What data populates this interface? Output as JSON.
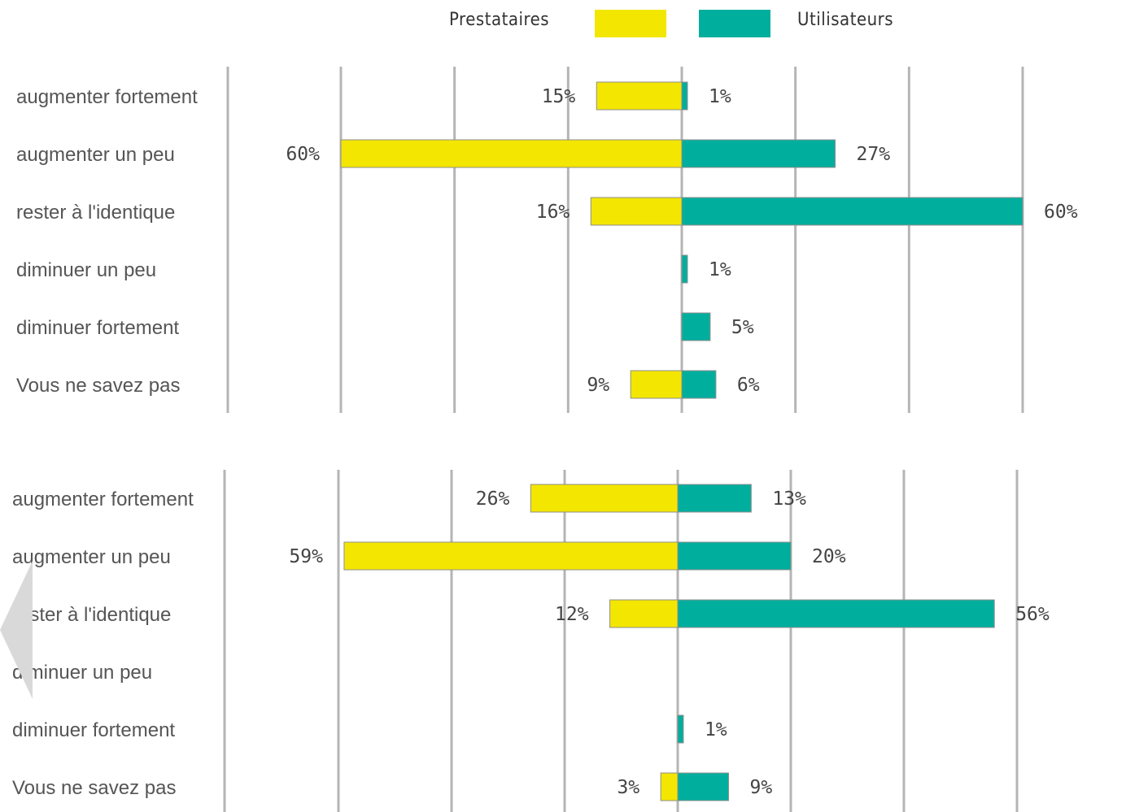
{
  "legend": {
    "providers_label": "Prestataires",
    "users_label": "Utilisateurs"
  },
  "colors": {
    "providers": "#f3e600",
    "users": "#00ae9e",
    "grid": "#b5b5b5",
    "bar_stroke": "#8f8f8f"
  },
  "chart_data": [
    {
      "type": "bar",
      "orientation": "horizontal-diverging",
      "categories": [
        "augmenter fortement",
        "augmenter un peu",
        "rester à l'identique",
        "diminuer un peu",
        "diminuer fortement",
        "Vous ne savez pas"
      ],
      "series": [
        {
          "name": "Prestataires",
          "values": [
            15,
            60,
            16,
            0,
            0,
            9
          ],
          "labels": [
            "15%",
            "60%",
            "16%",
            "",
            "",
            "9%"
          ]
        },
        {
          "name": "Utilisateurs",
          "values": [
            1,
            27,
            60,
            1,
            5,
            6
          ],
          "labels": [
            "1%",
            "27%",
            "60%",
            "1%",
            "5%",
            "6%"
          ]
        }
      ],
      "xlim": [
        -60,
        60
      ],
      "grid": true
    },
    {
      "type": "bar",
      "orientation": "horizontal-diverging",
      "categories": [
        "augmenter fortement",
        "augmenter un peu",
        "rester à l'identique",
        "diminuer un peu",
        "diminuer fortement",
        "Vous ne savez pas"
      ],
      "series": [
        {
          "name": "Prestataires",
          "values": [
            26,
            59,
            12,
            0,
            0,
            3
          ],
          "labels": [
            "26%",
            "59%",
            "12%",
            "",
            "",
            "3%"
          ]
        },
        {
          "name": "Utilisateurs",
          "values": [
            13,
            20,
            56,
            0,
            1,
            9
          ],
          "labels": [
            "13%",
            "20%",
            "56%",
            "",
            "1%",
            "9%"
          ]
        }
      ],
      "xlim": [
        -60,
        60
      ],
      "grid": true
    }
  ]
}
